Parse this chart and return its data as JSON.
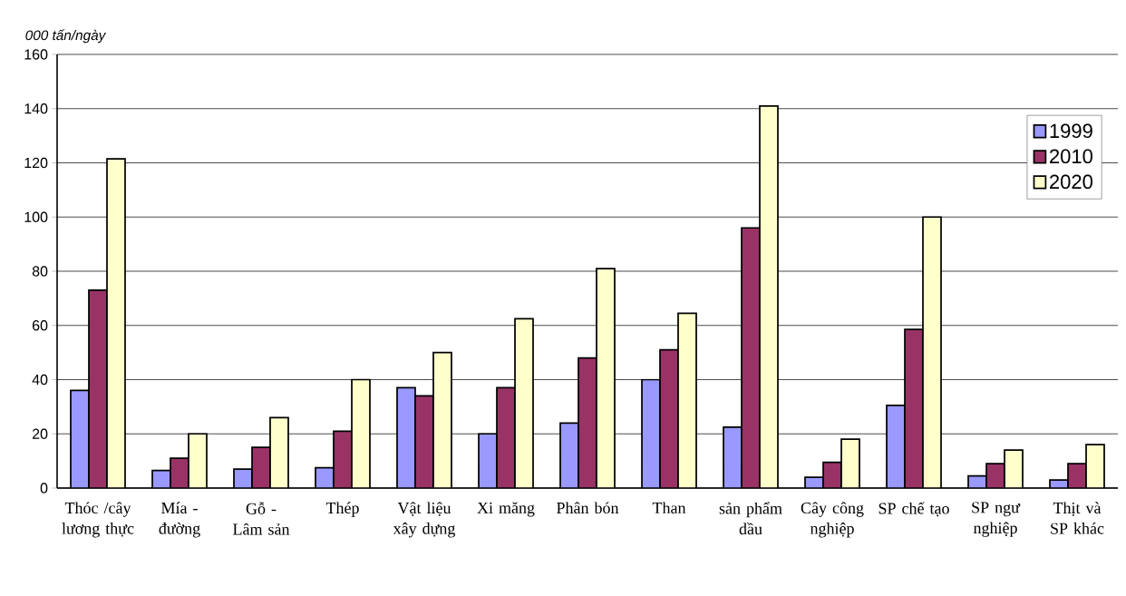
{
  "chart_data": {
    "type": "bar",
    "ylabel": "000 tấn/ngày",
    "categories": [
      "Thóc /cây lương thực",
      "Mía - đường",
      "Gỗ - Lâm sản",
      "Thép",
      "Vật liệu xây dựng",
      "Xi măng",
      "Phân bón",
      "Than",
      "sản phẩm dầu",
      "Cây công nghiệp",
      "SP chế tạo",
      "SP ngư nghiệp",
      "Thịt và SP khác"
    ],
    "series": [
      {
        "name": "1999",
        "color": "#9999ff",
        "values": [
          36,
          6.5,
          7,
          7.5,
          37,
          20,
          24,
          40,
          22.5,
          4,
          30.5,
          4.5,
          3
        ]
      },
      {
        "name": "2010",
        "color": "#993366",
        "values": [
          73,
          11,
          15,
          21,
          34,
          37,
          48,
          51,
          96,
          9.5,
          58.5,
          9,
          9
        ]
      },
      {
        "name": "2020",
        "color": "#ffffcc",
        "values": [
          121.5,
          20,
          26,
          40,
          50,
          62.5,
          81,
          64.5,
          141,
          18,
          100,
          14,
          16
        ]
      }
    ],
    "ylim": [
      0,
      160
    ],
    "yticks": [
      0,
      20,
      40,
      60,
      80,
      100,
      120,
      140,
      160
    ],
    "grid": "y",
    "legend": "top right"
  }
}
